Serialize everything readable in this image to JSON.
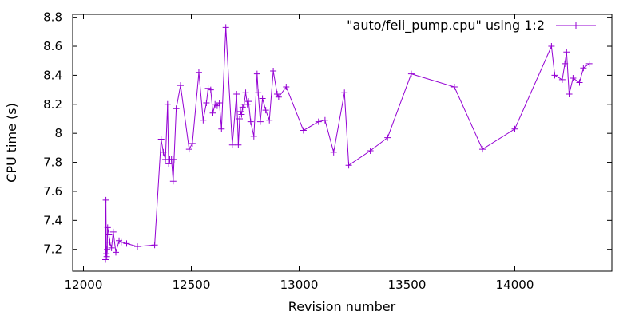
{
  "chart_data": {
    "type": "line",
    "title": "",
    "xlabel": "Revision number",
    "ylabel": "CPU time (s)",
    "xlim": [
      11950,
      14450
    ],
    "ylim": [
      7.05,
      8.82
    ],
    "xticks": [
      12000,
      12500,
      13000,
      13500,
      14000
    ],
    "yticks": [
      7.2,
      7.4,
      7.6,
      7.8,
      8.0,
      8.2,
      8.4,
      8.6,
      8.8
    ],
    "ytick_labels": [
      "7.2",
      "7.4",
      "7.6",
      "7.8",
      "8",
      "8.2",
      "8.4",
      "8.6",
      "8.8"
    ],
    "grid": false,
    "legend_position": "top-right",
    "colors": {
      "series": "#9400d3",
      "axes": "#000000"
    },
    "series": [
      {
        "name": "\"auto/feii_pump.cpu\" using 1:2",
        "x": [
          12102,
          12104,
          12106,
          12108,
          12110,
          12112,
          12118,
          12122,
          12130,
          12138,
          12150,
          12165,
          12175,
          12200,
          12250,
          12330,
          12360,
          12370,
          12380,
          12390,
          12395,
          12400,
          12408,
          12416,
          12420,
          12430,
          12450,
          12490,
          12505,
          12535,
          12555,
          12570,
          12578,
          12590,
          12600,
          12610,
          12620,
          12630,
          12640,
          12660,
          12690,
          12710,
          12718,
          12724,
          12728,
          12733,
          12738,
          12745,
          12752,
          12760,
          12765,
          12775,
          12790,
          12805,
          12810,
          12820,
          12830,
          12845,
          12862,
          12880,
          12898,
          12905,
          12940,
          13020,
          13090,
          13120,
          13160,
          13210,
          13230,
          13330,
          13410,
          13520,
          13720,
          13850,
          14000,
          14170,
          14185,
          14220,
          14232,
          14240,
          14252,
          14270,
          14300,
          14318,
          14345
        ],
        "y": [
          7.13,
          7.54,
          7.17,
          7.15,
          7.2,
          7.35,
          7.3,
          7.25,
          7.21,
          7.32,
          7.18,
          7.26,
          7.25,
          7.24,
          7.22,
          7.23,
          7.96,
          7.87,
          7.82,
          8.2,
          7.79,
          7.82,
          7.82,
          7.67,
          7.82,
          8.17,
          8.33,
          7.89,
          7.93,
          8.42,
          8.09,
          8.21,
          8.31,
          8.3,
          8.14,
          8.2,
          8.19,
          8.21,
          8.03,
          8.73,
          7.92,
          8.27,
          7.92,
          8.1,
          8.15,
          8.13,
          8.18,
          8.2,
          8.28,
          8.2,
          8.22,
          8.08,
          7.98,
          8.41,
          8.28,
          8.08,
          8.24,
          8.16,
          8.09,
          8.43,
          8.27,
          8.25,
          8.32,
          8.02,
          8.08,
          8.09,
          7.87,
          8.28,
          7.78,
          7.88,
          7.97,
          8.41,
          8.32,
          7.89,
          8.03,
          8.6,
          8.4,
          8.37,
          8.48,
          8.56,
          8.27,
          8.38,
          8.35,
          8.45,
          8.48
        ]
      }
    ]
  }
}
